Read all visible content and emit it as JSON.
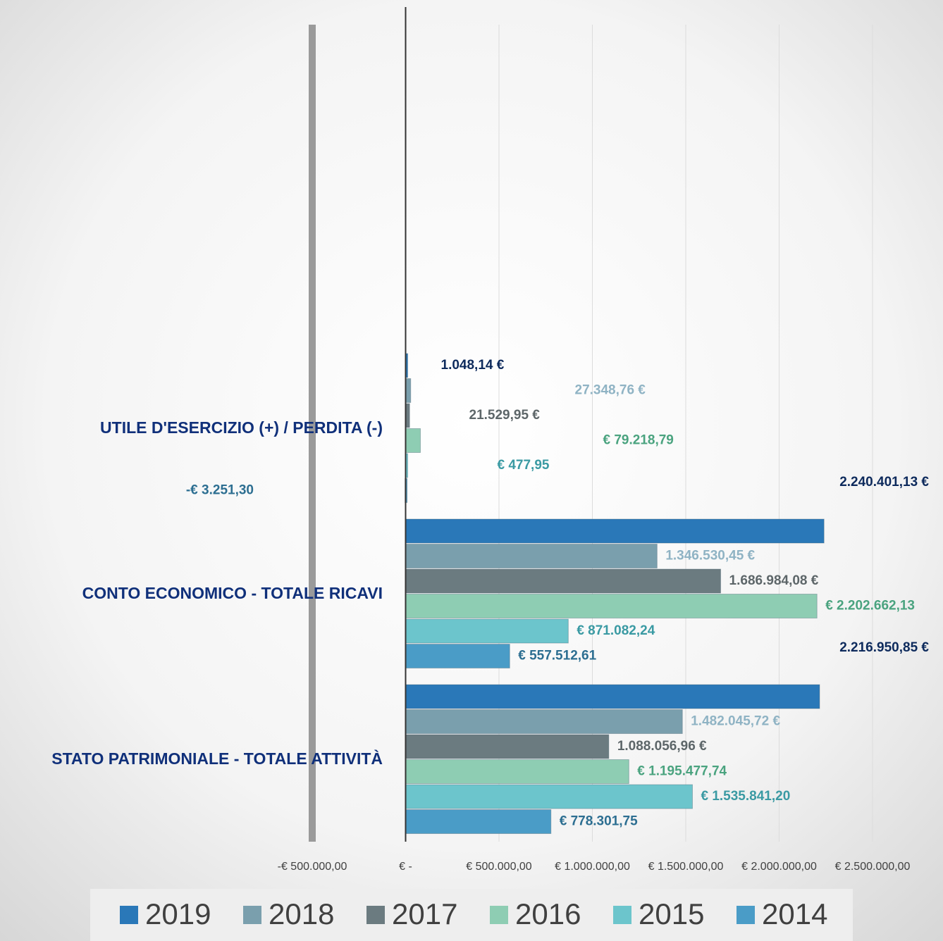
{
  "chart_data": {
    "type": "bar",
    "orientation": "horizontal",
    "categories": [
      "UTILE D'ESERCIZIO (+) / PERDITA (-)",
      "CONTO ECONOMICO - TOTALE RICAVI",
      "STATO PATRIMONIALE - TOTALE ATTIVITÀ"
    ],
    "series": [
      {
        "name": "2019",
        "color": "#2a78b8",
        "label_color": "#0d2a5c",
        "values": [
          1048.14,
          2240401.13,
          2216950.85
        ],
        "value_labels": [
          "1.048,14 €",
          "2.240.401,13 €",
          "2.216.950,85 €"
        ]
      },
      {
        "name": "2018",
        "color": "#7a9fad",
        "label_color": "#8fb3c4",
        "values": [
          27348.76,
          1346530.45,
          1482045.72
        ],
        "value_labels": [
          "27.348,76 €",
          "1.346.530,45 €",
          "1.482.045,72 €"
        ]
      },
      {
        "name": "2017",
        "color": "#6b7b80",
        "label_color": "#5d6669",
        "values": [
          21529.95,
          1686984.08,
          1088056.96
        ],
        "value_labels": [
          "21.529,95 €",
          "1.686.984,08 €",
          "1.088.056,96 €"
        ]
      },
      {
        "name": "2016",
        "color": "#8ecdb3",
        "label_color": "#4aa37f",
        "values": [
          79218.79,
          2202662.13,
          1195477.74
        ],
        "value_labels": [
          "€ 79.218,79",
          "€ 2.202.662,13",
          "€ 1.195.477,74"
        ]
      },
      {
        "name": "2015",
        "color": "#6cc5cc",
        "label_color": "#3a9aa3",
        "values": [
          477.95,
          871082.24,
          1535841.2
        ],
        "value_labels": [
          "€ 477,95",
          "€ 871.082,24",
          "€ 1.535.841,20"
        ]
      },
      {
        "name": "2014",
        "color": "#4a9cc7",
        "label_color": "#2c6e91",
        "values": [
          -3251.3,
          557512.61,
          778301.75
        ],
        "value_labels": [
          "-€ 3.251,30",
          "€ 557.512,61",
          "€ 778.301,75"
        ]
      }
    ],
    "xlim": [
      -500000,
      2500000
    ],
    "xticks": [
      {
        "value": -500000,
        "label": "-€ 500.000,00"
      },
      {
        "value": 0,
        "label": "€ -"
      },
      {
        "value": 500000,
        "label": "€ 500.000,00"
      },
      {
        "value": 1000000,
        "label": "€ 1.000.000,00"
      },
      {
        "value": 1500000,
        "label": "€ 1.500.000,00"
      },
      {
        "value": 2000000,
        "label": "€ 2.000.000,00"
      },
      {
        "value": 2500000,
        "label": "€ 2.500.000,00"
      }
    ],
    "grid": true,
    "legend": "bottom"
  }
}
